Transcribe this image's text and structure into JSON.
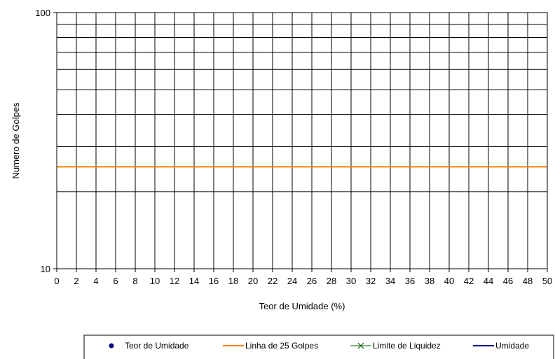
{
  "chart_data": {
    "type": "line",
    "title": "",
    "xlabel": "Teor de Umidade  (%)",
    "ylabel": "Numero de Golpes",
    "xlim": [
      0,
      50
    ],
    "ylim": [
      10,
      100
    ],
    "y_scale": "log",
    "grid": true,
    "x_ticks": [
      "0",
      "2",
      "4",
      "6",
      "8",
      "10",
      "12",
      "14",
      "16",
      "18",
      "20",
      "22",
      "24",
      "26",
      "28",
      "30",
      "32",
      "34",
      "36",
      "38",
      "40",
      "42",
      "44",
      "46",
      "48",
      "50"
    ],
    "y_tick_labels": [
      "10",
      "100"
    ],
    "series": [
      {
        "name": "Teor de Umidade",
        "color": "#000080",
        "marker": "circle",
        "points": []
      },
      {
        "name": "Linha de 25 Golpes",
        "color": "#FF8000",
        "x": [
          0,
          50
        ],
        "y": [
          25,
          25
        ]
      },
      {
        "name": "Limite de Liquidez",
        "color": "#006400",
        "marker": "x",
        "points": []
      },
      {
        "name": "Umidade",
        "color": "#000080",
        "points": []
      }
    ],
    "legend_position": "bottom"
  },
  "colors": {
    "grid": "#000000",
    "background": "#ffffff"
  }
}
